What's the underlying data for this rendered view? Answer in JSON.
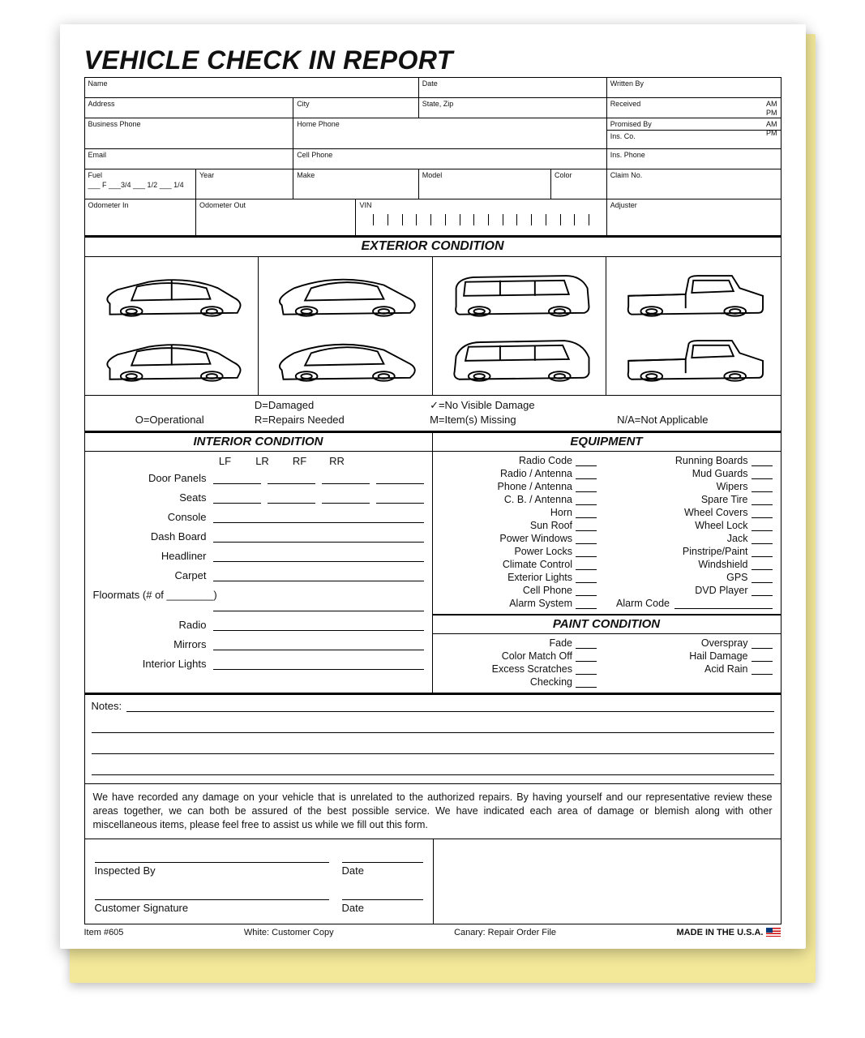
{
  "title": "VEHICLE CHECK IN REPORT",
  "topFields": {
    "name": "Name",
    "date": "Date",
    "writtenBy": "Written By",
    "address": "Address",
    "city": "City",
    "stateZip": "State, Zip",
    "received": "Received",
    "promisedBy": "Promised By",
    "busPhone": "Business Phone",
    "homePhone": "Home Phone",
    "insCo": "Ins. Co.",
    "email": "Email",
    "cellPhone": "Cell Phone",
    "insPhone": "Ins. Phone",
    "fuel": "Fuel",
    "fuelMarks": "___ F   ___3/4   ___ 1/2   ___ 1/4",
    "year": "Year",
    "make": "Make",
    "model": "Model",
    "color": "Color",
    "claimNo": "Claim No.",
    "odoIn": "Odometer In",
    "odoOut": "Odometer Out",
    "vin": "VIN",
    "adjuster": "Adjuster",
    "am": "AM",
    "pm": "PM"
  },
  "sections": {
    "exterior": "EXTERIOR CONDITION",
    "interior": "INTERIOR CONDITION",
    "equipment": "EQUIPMENT",
    "paint": "PAINT CONDITION"
  },
  "legend": {
    "o": "O=Operational",
    "d": "D=Damaged",
    "check": "✓=No Visible Damage",
    "r": "R=Repairs Needed",
    "m": "M=Item(s) Missing",
    "na": "N/A=Not Applicable"
  },
  "interiorHeaders": [
    "LF",
    "LR",
    "RF",
    "RR"
  ],
  "interior": {
    "fourCol": [
      "Door Panels",
      "Seats"
    ],
    "single": [
      "Console",
      "Dash Board",
      "Headliner",
      "Carpet"
    ],
    "floormats": "Floormats (# of ________)",
    "single2": [
      "Radio",
      "Mirrors",
      "Interior Lights"
    ]
  },
  "equipmentLeft": [
    "Radio Code",
    "Radio / Antenna",
    "Phone / Antenna",
    "C. B. / Antenna",
    "Horn",
    "Sun Roof",
    "Power Windows",
    "Power Locks",
    "Climate Control",
    "Exterior Lights",
    "Cell Phone",
    "Alarm System"
  ],
  "equipmentRight": [
    "Running Boards",
    "Mud Guards",
    "Wipers",
    "Spare Tire",
    "Wheel Covers",
    "Wheel Lock",
    "Jack",
    "Pinstripe/Paint",
    "Windshield",
    "GPS",
    "DVD Player"
  ],
  "alarmCode": "Alarm Code",
  "paintLeft": [
    "Fade",
    "Color Match Off",
    "Excess Scratches",
    "Checking"
  ],
  "paintRight": [
    "Overspray",
    "Hail Damage",
    "Acid Rain"
  ],
  "notesLabel": "Notes:",
  "disclaimer": "We have recorded any damage on your vehicle that is unrelated to the authorized repairs.  By having yourself and our representative review these areas together, we can both be assured of the best possible service.  We have indicated each area of damage or blemish along with other miscellaneous items, please feel free to assist us while we fill out this form.",
  "sign": {
    "inspectedBy": "Inspected By",
    "date": "Date",
    "customerSig": "Customer Signature"
  },
  "footer": {
    "item": "Item #605",
    "white": "White:  Customer Copy",
    "canary": "Canary:  Repair Order File",
    "made": "MADE IN THE U.S.A."
  }
}
